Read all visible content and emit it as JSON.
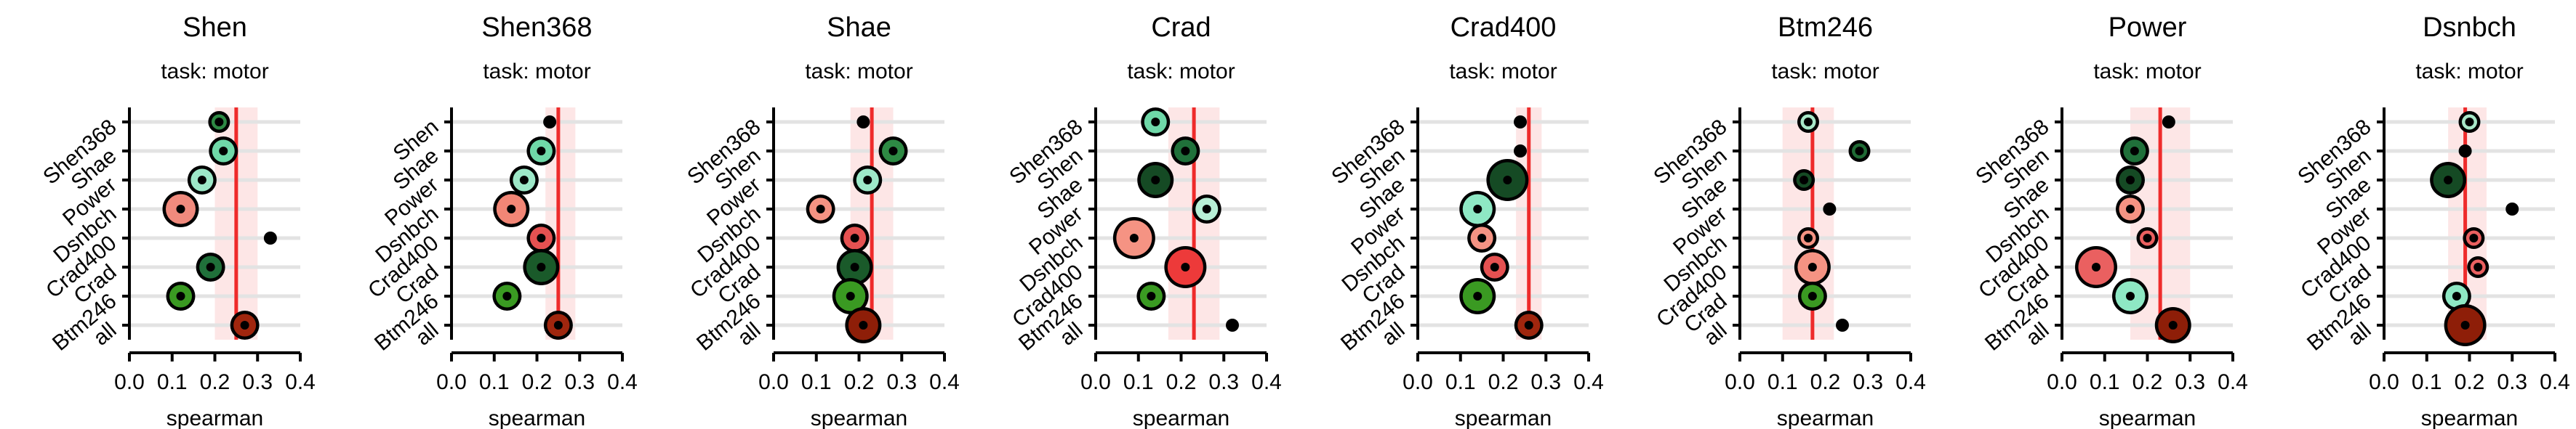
{
  "colors": {
    "ref_line": "#ee2b2b",
    "ref_band": "#fbd5d5",
    "grid": "#e3e3e3",
    "axis": "#000000",
    "fill_palette": [
      "#7fe0b8",
      "#20703a",
      "#154a24",
      "#3a9a22",
      "#ea6060",
      "#f59383",
      "#c62d2d",
      "#8e1e08",
      "#ed3a3a"
    ]
  },
  "chart_data": [
    {
      "type": "scatter",
      "title": "Shen",
      "subtitle": "task: motor",
      "xlabel": "spearman",
      "xlim": [
        0.0,
        0.4
      ],
      "xticks": [
        "0.0",
        "0.1",
        "0.2",
        "0.3",
        "0.4"
      ],
      "reference": 0.25,
      "band": [
        0.2,
        0.3
      ],
      "points": [
        {
          "label": "Shen368",
          "value": 0.21,
          "size": 2,
          "fill": "#2e8a44"
        },
        {
          "label": "Shae",
          "value": 0.22,
          "size": 3,
          "fill": "#6fd8a8"
        },
        {
          "label": "Power",
          "value": 0.17,
          "size": 3,
          "fill": "#9de8c8"
        },
        {
          "label": "Dsnbch",
          "value": 0.12,
          "size": 4,
          "fill": "#f08a7d"
        },
        {
          "label": "Crad400",
          "value": 0.33,
          "size": 1,
          "fill": "#000000"
        },
        {
          "label": "Crad",
          "value": 0.19,
          "size": 3,
          "fill": "#20703a"
        },
        {
          "label": "Btm246",
          "value": 0.12,
          "size": 3,
          "fill": "#3a9a22"
        },
        {
          "label": "all",
          "value": 0.27,
          "size": 3,
          "fill": "#a0260e"
        }
      ]
    },
    {
      "type": "scatter",
      "title": "Shen368",
      "subtitle": "task: motor",
      "xlabel": "spearman",
      "xlim": [
        0.0,
        0.4
      ],
      "xticks": [
        "0.0",
        "0.1",
        "0.2",
        "0.3",
        "0.4"
      ],
      "reference": 0.25,
      "band": [
        0.22,
        0.29
      ],
      "points": [
        {
          "label": "Shen",
          "value": 0.23,
          "size": 1,
          "fill": "#000000"
        },
        {
          "label": "Shae",
          "value": 0.21,
          "size": 3,
          "fill": "#6fd8a8"
        },
        {
          "label": "Power",
          "value": 0.17,
          "size": 3,
          "fill": "#9de8c8"
        },
        {
          "label": "Dsnbch",
          "value": 0.14,
          "size": 4,
          "fill": "#f28676"
        },
        {
          "label": "Crad400",
          "value": 0.21,
          "size": 3,
          "fill": "#e55151"
        },
        {
          "label": "Crad",
          "value": 0.21,
          "size": 4,
          "fill": "#1a5a2a"
        },
        {
          "label": "Btm246",
          "value": 0.13,
          "size": 3,
          "fill": "#3a9a22"
        },
        {
          "label": "all",
          "value": 0.25,
          "size": 3,
          "fill": "#a0260e"
        }
      ]
    },
    {
      "type": "scatter",
      "title": "Shae",
      "subtitle": "task: motor",
      "xlabel": "spearman",
      "xlim": [
        0.0,
        0.4
      ],
      "xticks": [
        "0.0",
        "0.1",
        "0.2",
        "0.3",
        "0.4"
      ],
      "reference": 0.23,
      "band": [
        0.18,
        0.28
      ],
      "points": [
        {
          "label": "Shen368",
          "value": 0.21,
          "size": 1,
          "fill": "#000000"
        },
        {
          "label": "Shen",
          "value": 0.28,
          "size": 3,
          "fill": "#2e8a44"
        },
        {
          "label": "Power",
          "value": 0.22,
          "size": 3,
          "fill": "#9de8c8"
        },
        {
          "label": "Dsnbch",
          "value": 0.11,
          "size": 3,
          "fill": "#f59383"
        },
        {
          "label": "Crad400",
          "value": 0.19,
          "size": 3,
          "fill": "#e55151"
        },
        {
          "label": "Crad",
          "value": 0.19,
          "size": 4,
          "fill": "#1a5a2a"
        },
        {
          "label": "Btm246",
          "value": 0.18,
          "size": 4,
          "fill": "#3a9a22"
        },
        {
          "label": "all",
          "value": 0.21,
          "size": 4,
          "fill": "#8e1e08"
        }
      ]
    },
    {
      "type": "scatter",
      "title": "Crad",
      "subtitle": "task: motor",
      "xlabel": "spearman",
      "xlim": [
        0.0,
        0.4
      ],
      "xticks": [
        "0.0",
        "0.1",
        "0.2",
        "0.3",
        "0.4"
      ],
      "reference": 0.23,
      "band": [
        0.17,
        0.29
      ],
      "points": [
        {
          "label": "Shen368",
          "value": 0.14,
          "size": 3,
          "fill": "#6fd8a8"
        },
        {
          "label": "Shen",
          "value": 0.21,
          "size": 3,
          "fill": "#20703a"
        },
        {
          "label": "Shae",
          "value": 0.14,
          "size": 4,
          "fill": "#154a24"
        },
        {
          "label": "Power",
          "value": 0.26,
          "size": 3,
          "fill": "#b7f0d6"
        },
        {
          "label": "Dsnbch",
          "value": 0.09,
          "size": 5,
          "fill": "#f59383"
        },
        {
          "label": "Crad400",
          "value": 0.21,
          "size": 5,
          "fill": "#ed3a3a"
        },
        {
          "label": "Btm246",
          "value": 0.13,
          "size": 3,
          "fill": "#3a9a22"
        },
        {
          "label": "all",
          "value": 0.32,
          "size": 1,
          "fill": "#000000"
        }
      ]
    },
    {
      "type": "scatter",
      "title": "Crad400",
      "subtitle": "task: motor",
      "xlabel": "spearman",
      "xlim": [
        0.0,
        0.4
      ],
      "xticks": [
        "0.0",
        "0.1",
        "0.2",
        "0.3",
        "0.4"
      ],
      "reference": 0.26,
      "band": [
        0.23,
        0.29
      ],
      "points": [
        {
          "label": "Shen368",
          "value": 0.24,
          "size": 1,
          "fill": "#000000"
        },
        {
          "label": "Shen",
          "value": 0.24,
          "size": 1,
          "fill": "#000000"
        },
        {
          "label": "Shae",
          "value": 0.21,
          "size": 5,
          "fill": "#154a24"
        },
        {
          "label": "Power",
          "value": 0.14,
          "size": 4,
          "fill": "#8ee8c4"
        },
        {
          "label": "Dsnbch",
          "value": 0.15,
          "size": 3,
          "fill": "#f59383"
        },
        {
          "label": "Crad",
          "value": 0.18,
          "size": 3,
          "fill": "#e55151"
        },
        {
          "label": "Btm246",
          "value": 0.14,
          "size": 4,
          "fill": "#3a9a22"
        },
        {
          "label": "all",
          "value": 0.26,
          "size": 3,
          "fill": "#a0260e"
        }
      ]
    },
    {
      "type": "scatter",
      "title": "Btm246",
      "subtitle": "task: motor",
      "xlabel": "spearman",
      "xlim": [
        0.0,
        0.4
      ],
      "xticks": [
        "0.0",
        "0.1",
        "0.2",
        "0.3",
        "0.4"
      ],
      "reference": 0.17,
      "band": [
        0.1,
        0.22
      ],
      "points": [
        {
          "label": "Shen368",
          "value": 0.16,
          "size": 2,
          "fill": "#a8e8c8"
        },
        {
          "label": "Shen",
          "value": 0.28,
          "size": 2,
          "fill": "#1f6a34"
        },
        {
          "label": "Shae",
          "value": 0.15,
          "size": 2,
          "fill": "#154a24"
        },
        {
          "label": "Power",
          "value": 0.21,
          "size": 1,
          "fill": "#000000"
        },
        {
          "label": "Dsnbch",
          "value": 0.16,
          "size": 2,
          "fill": "#f59383"
        },
        {
          "label": "Crad400",
          "value": 0.17,
          "size": 4,
          "fill": "#f59383"
        },
        {
          "label": "Crad",
          "value": 0.17,
          "size": 3,
          "fill": "#3a9a22"
        },
        {
          "label": "all",
          "value": 0.24,
          "size": 1,
          "fill": "#000000"
        }
      ]
    },
    {
      "type": "scatter",
      "title": "Power",
      "subtitle": "task: motor",
      "xlabel": "spearman",
      "xlim": [
        0.0,
        0.4
      ],
      "xticks": [
        "0.0",
        "0.1",
        "0.2",
        "0.3",
        "0.4"
      ],
      "reference": 0.23,
      "band": [
        0.16,
        0.3
      ],
      "points": [
        {
          "label": "Shen368",
          "value": 0.25,
          "size": 1,
          "fill": "#000000"
        },
        {
          "label": "Shen",
          "value": 0.17,
          "size": 3,
          "fill": "#20703a"
        },
        {
          "label": "Shae",
          "value": 0.16,
          "size": 3,
          "fill": "#154a24"
        },
        {
          "label": "Dsnbch",
          "value": 0.16,
          "size": 3,
          "fill": "#f59383"
        },
        {
          "label": "Crad400",
          "value": 0.2,
          "size": 2,
          "fill": "#ea6060"
        },
        {
          "label": "Crad",
          "value": 0.08,
          "size": 5,
          "fill": "#ea6060"
        },
        {
          "label": "Btm246",
          "value": 0.16,
          "size": 4,
          "fill": "#8ee8c4"
        },
        {
          "label": "all",
          "value": 0.26,
          "size": 4,
          "fill": "#8e1e08"
        }
      ]
    },
    {
      "type": "scatter",
      "title": "Dsnbch",
      "subtitle": "task: motor",
      "xlabel": "spearman",
      "xlim": [
        0.0,
        0.4
      ],
      "xticks": [
        "0.0",
        "0.1",
        "0.2",
        "0.3",
        "0.4"
      ],
      "reference": 0.19,
      "band": [
        0.15,
        0.24
      ],
      "points": [
        {
          "label": "Shen368",
          "value": 0.2,
          "size": 2,
          "fill": "#a8e8c8"
        },
        {
          "label": "Shen",
          "value": 0.19,
          "size": 1,
          "fill": "#000000"
        },
        {
          "label": "Shae",
          "value": 0.15,
          "size": 4,
          "fill": "#154a24"
        },
        {
          "label": "Power",
          "value": 0.3,
          "size": 1,
          "fill": "#000000"
        },
        {
          "label": "Crad400",
          "value": 0.21,
          "size": 2,
          "fill": "#ea6060"
        },
        {
          "label": "Crad",
          "value": 0.22,
          "size": 2,
          "fill": "#ea6060"
        },
        {
          "label": "Btm246",
          "value": 0.17,
          "size": 3,
          "fill": "#8ee8c4"
        },
        {
          "label": "all",
          "value": 0.19,
          "size": 5,
          "fill": "#8e1e08"
        }
      ]
    }
  ]
}
